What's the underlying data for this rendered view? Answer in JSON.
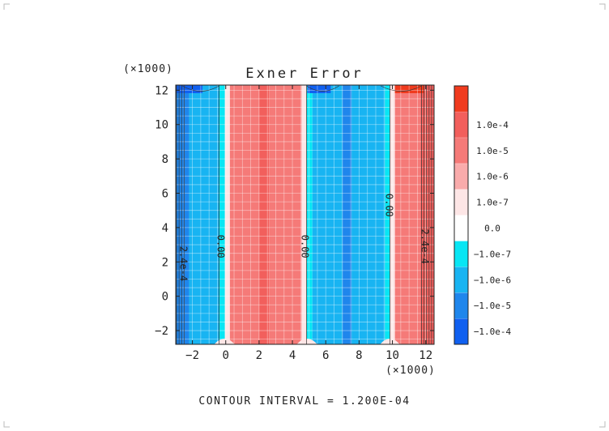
{
  "chart_data": {
    "type": "heatmap",
    "title": "Exner Error",
    "x_multiplier": "(×1000)",
    "y_multiplier": "(×1000)",
    "xlim": [
      -3,
      12.5
    ],
    "ylim": [
      -2.8,
      12.3
    ],
    "x_ticks": [
      -2,
      0,
      2,
      4,
      6,
      8,
      10,
      12
    ],
    "x_tick_labels": [
      "−2",
      "0",
      "2",
      "4",
      "6",
      "8",
      "10",
      "12"
    ],
    "y_ticks": [
      -2,
      0,
      2,
      4,
      6,
      8,
      10,
      12
    ],
    "y_tick_labels": [
      "−2",
      "0",
      "2",
      "4",
      "6",
      "8",
      "10",
      "12"
    ],
    "grid": true,
    "footer": "CONTOUR INTERVAL = 1.200E-04",
    "contour_labels": [
      {
        "text": "0.00",
        "x": -0.3,
        "y": 2.9
      },
      {
        "text": "0.00",
        "x": 4.75,
        "y": 2.9
      },
      {
        "text": "0.00",
        "x": 9.8,
        "y": 5.3
      },
      {
        "text": "2.4e-4",
        "x": -2.55,
        "y": 1.9
      },
      {
        "text": "2.4e-4",
        "x": 11.95,
        "y": 2.9
      }
    ],
    "bands": [
      {
        "x0": -3.0,
        "x1": -2.2,
        "level": 1
      },
      {
        "x0": -2.2,
        "x1": -0.4,
        "level": 2
      },
      {
        "x0": -0.4,
        "x1": -0.05,
        "level": 3
      },
      {
        "x0": -0.05,
        "x1": 0.25,
        "level": 5
      },
      {
        "x0": 0.25,
        "x1": 2.0,
        "level": 7
      },
      {
        "x0": 2.0,
        "x1": 2.6,
        "level": 8
      },
      {
        "x0": 2.6,
        "x1": 4.55,
        "level": 7
      },
      {
        "x0": 4.55,
        "x1": 4.85,
        "level": 5
      },
      {
        "x0": 4.85,
        "x1": 5.2,
        "level": 3
      },
      {
        "x0": 5.2,
        "x1": 7.0,
        "level": 2
      },
      {
        "x0": 7.0,
        "x1": 7.55,
        "level": 1
      },
      {
        "x0": 7.55,
        "x1": 9.55,
        "level": 2
      },
      {
        "x0": 9.55,
        "x1": 9.85,
        "level": 3
      },
      {
        "x0": 9.85,
        "x1": 10.15,
        "level": 5
      },
      {
        "x0": 10.15,
        "x1": 11.7,
        "level": 7
      },
      {
        "x0": 11.7,
        "x1": 12.5,
        "level": 8
      }
    ],
    "colorbar": {
      "levels": [
        {
          "color": "#1060f0",
          "label": "−1.0e-4"
        },
        {
          "color": "#1f86ec",
          "label": "−1.0e-5"
        },
        {
          "color": "#18b4f2",
          "label": "−1.0e-6"
        },
        {
          "color": "#08e6f4",
          "label": "−1.0e-7"
        },
        {
          "color": "#ffffff",
          "label": "0.0"
        },
        {
          "color": "#fde6e6",
          "label": "1.0e-7"
        },
        {
          "color": "#f9abab",
          "label": "1.0e-6"
        },
        {
          "color": "#f57a78",
          "label": "1.0e-5"
        },
        {
          "color": "#f25f5c",
          "label": "1.0e-4"
        },
        {
          "color": "#f03b1e",
          "label": ""
        }
      ]
    }
  }
}
